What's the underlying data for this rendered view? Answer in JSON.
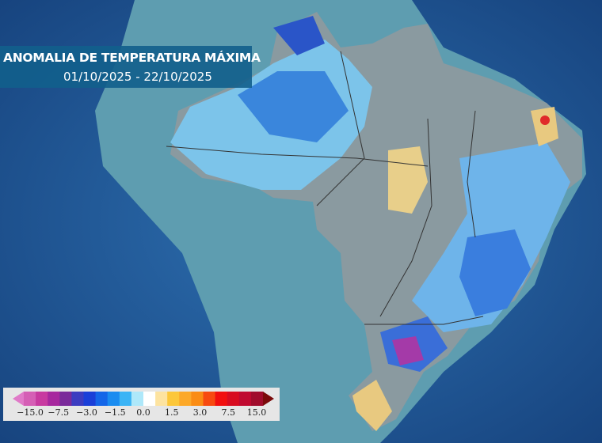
{
  "header": {
    "title": "ANOMALIA DE TEMPERATURA MÁXIMA",
    "date_range": "01/10/2025 - 22/10/2025"
  },
  "legend": {
    "ticks": [
      "−15.0",
      "−7.5",
      "−3.0",
      "−1.5",
      "0.0",
      "1.5",
      "3.0",
      "7.5",
      "15.0"
    ],
    "colors": [
      "#e07ac8",
      "#d55fb5",
      "#c83aa0",
      "#a7289e",
      "#7a2a9a",
      "#3c3cc0",
      "#1a3fd8",
      "#1466e8",
      "#1a8cf0",
      "#3cb4f5",
      "#aee8fa",
      "#ffffff",
      "#fde3a0",
      "#fcc73a",
      "#fca828",
      "#fa8c14",
      "#f74a10",
      "#f20f0f",
      "#d80c20",
      "#c00a30",
      "#a00c2c",
      "#7a0a0a"
    ]
  },
  "map": {
    "ocean": "#1d5a9a",
    "land": "#5f9fb3",
    "neutral": "#8a9aa0",
    "cool": "#7cc4ea",
    "cold": "#2f78d8",
    "warm": "#e8cf8a",
    "hot": "#e02a2a"
  }
}
